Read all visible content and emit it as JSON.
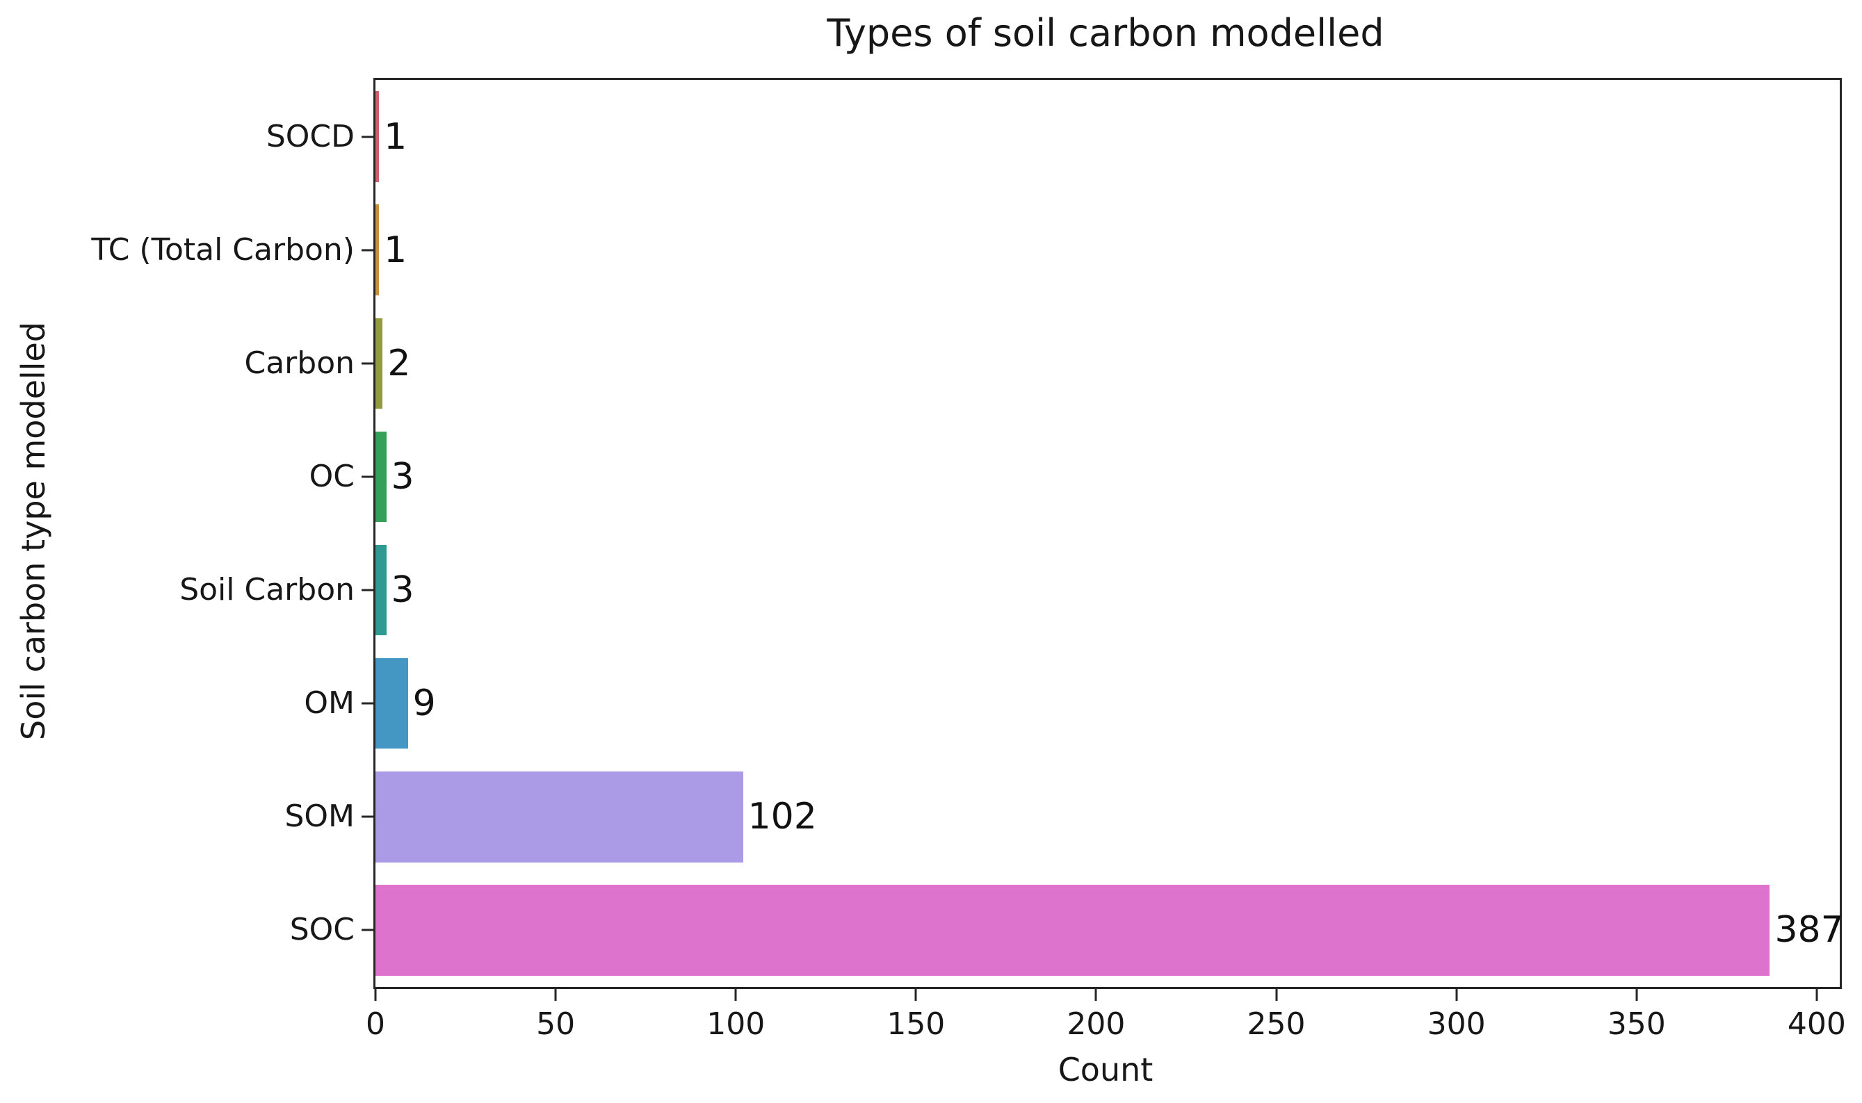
{
  "figure": {
    "title": "Types of soil carbon modelled",
    "xlabel": "Count",
    "ylabel": "Soil carbon type modelled"
  },
  "chart_data": {
    "type": "bar",
    "orientation": "horizontal",
    "title": "Types of soil carbon modelled",
    "xlabel": "Count",
    "ylabel": "Soil carbon type modelled",
    "categories": [
      "SOCD",
      "TC (Total Carbon)",
      "Carbon",
      "OC",
      "Soil Carbon",
      "OM",
      "SOM",
      "SOC"
    ],
    "values": [
      1,
      1,
      2,
      3,
      3,
      9,
      102,
      387
    ],
    "bar_end_labels": [
      "1",
      "1",
      "2",
      "3",
      "3",
      "9",
      "102",
      "387"
    ],
    "bar_colors": [
      "#d05f6d",
      "#c8903f",
      "#93993d",
      "#35a057",
      "#2f9a91",
      "#4497c2",
      "#ab9ae6",
      "#de73cd"
    ],
    "xlim": [
      0,
      406.4
    ],
    "x_ticks": [
      0,
      50,
      100,
      150,
      200,
      250,
      300,
      350,
      400
    ],
    "y_tick_labels": [
      "SOCD",
      "TC (Total Carbon)",
      "Carbon",
      "OC",
      "Soil Carbon",
      "OM",
      "SOM",
      "SOC"
    ],
    "bar_thickness_ratio": 0.8,
    "grid": false,
    "legend": null,
    "spine_color": "#262626",
    "text_color": "#171717",
    "background_color": "#ffffff"
  }
}
